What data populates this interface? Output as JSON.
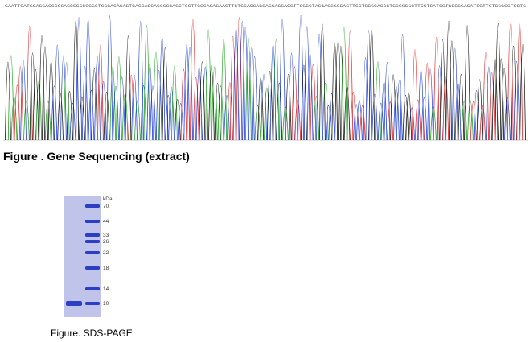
{
  "sequencing": {
    "title": "Figure . Gene Sequencing (extract)",
    "sequence": "GAATTCATGGAGGAGCCGCAGCGCGCCCGCTCGCACACAGTCACCACCACCGCCAGCTCCTTCGCAGAGAACTTCTCCACCAGCAGCAGCAGCTTCGCCTACGACCGGGAGTTCCTCCGCACCCTGCCCGGCTTCCTCATCGTGGCCGAGATCGTTCTGGGGCTGCTG",
    "trace_colors": {
      "A": "#1aa01a",
      "C": "#1f3fd6",
      "G": "#111111",
      "T": "#e02020"
    }
  },
  "gel": {
    "unit_label": "kDa",
    "markers": [
      "70",
      "44",
      "33",
      "26",
      "22",
      "18",
      "14",
      "10"
    ],
    "lane_color": "#b9bde6",
    "band_color": "#2a3fc2",
    "caption": "Figure. SDS-PAGE"
  }
}
